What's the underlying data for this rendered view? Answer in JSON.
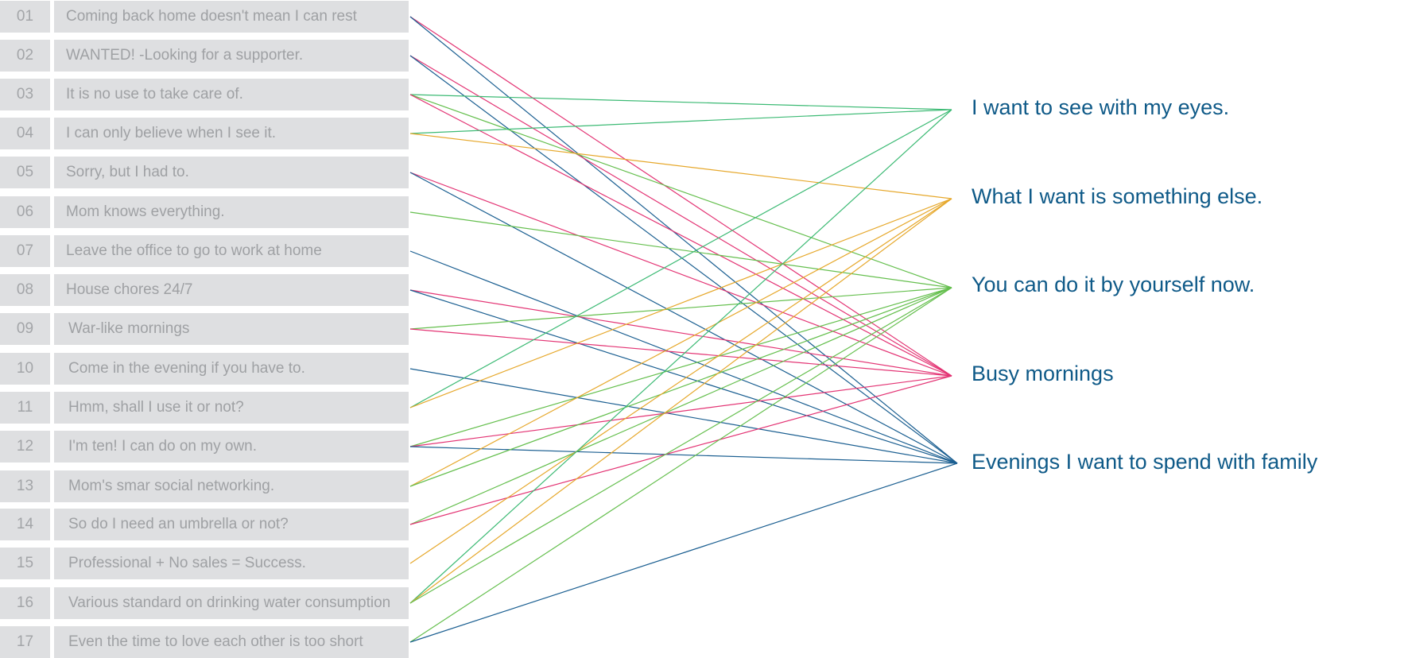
{
  "items": [
    {
      "num": "01",
      "label": "Coming back home doesn't mean I can rest"
    },
    {
      "num": "02",
      "label": "WANTED! -Looking for a supporter."
    },
    {
      "num": "03",
      "label": "It is no use to take care of."
    },
    {
      "num": "04",
      "label": "I can only believe when I see it."
    },
    {
      "num": "05",
      "label": "Sorry, but I had to."
    },
    {
      "num": "06",
      "label": "Mom knows everything."
    },
    {
      "num": "07",
      "label": "Leave the office to go to work at home"
    },
    {
      "num": "08",
      "label": "House chores 24/7"
    },
    {
      "num": "09",
      "label": "War-like mornings"
    },
    {
      "num": "10",
      "label": "Come in the evening if you have to."
    },
    {
      "num": "11",
      "label": "Hmm, shall I use it or not?"
    },
    {
      "num": "12",
      "label": "I'm ten! I can do on my own."
    },
    {
      "num": "13",
      "label": "Mom's smar social networking."
    },
    {
      "num": "14",
      "label": "So do I need an umbrella or not?"
    },
    {
      "num": "15",
      "label": "Professional + No sales = Success."
    },
    {
      "num": "16",
      "label": "Various standard on drinking water consumption"
    },
    {
      "num": "17",
      "label": "Even the time to love each other is too short"
    }
  ],
  "categories": [
    {
      "label": "I want to see with my eyes.",
      "color": "#3cba74"
    },
    {
      "label": "What I want is something else.",
      "color": "#e6a82c"
    },
    {
      "label": "You can do it by yourself now.",
      "color": "#65bf4e"
    },
    {
      "label": "Busy mornings",
      "color": "#e33474"
    },
    {
      "label": "Evenings I want to spend with family",
      "color": "#1b5f91"
    }
  ],
  "connections": [
    {
      "from": "01",
      "to": 3
    },
    {
      "from": "01",
      "to": 4
    },
    {
      "from": "02",
      "to": 3
    },
    {
      "from": "02",
      "to": 4
    },
    {
      "from": "03",
      "to": 0
    },
    {
      "from": "03",
      "to": 2
    },
    {
      "from": "03",
      "to": 3
    },
    {
      "from": "04",
      "to": 0
    },
    {
      "from": "04",
      "to": 1
    },
    {
      "from": "05",
      "to": 3
    },
    {
      "from": "05",
      "to": 4
    },
    {
      "from": "06",
      "to": 2
    },
    {
      "from": "07",
      "to": 4
    },
    {
      "from": "08",
      "to": 3
    },
    {
      "from": "08",
      "to": 4
    },
    {
      "from": "09",
      "to": 2
    },
    {
      "from": "09",
      "to": 3
    },
    {
      "from": "10",
      "to": 4
    },
    {
      "from": "11",
      "to": 0
    },
    {
      "from": "11",
      "to": 1
    },
    {
      "from": "12",
      "to": 2
    },
    {
      "from": "12",
      "to": 3
    },
    {
      "from": "12",
      "to": 4
    },
    {
      "from": "13",
      "to": 1
    },
    {
      "from": "13",
      "to": 2
    },
    {
      "from": "14",
      "to": 2
    },
    {
      "from": "14",
      "to": 3
    },
    {
      "from": "15",
      "to": 1
    },
    {
      "from": "16",
      "to": 0
    },
    {
      "from": "16",
      "to": 1
    },
    {
      "from": "16",
      "to": 2
    },
    {
      "from": "17",
      "to": 2
    },
    {
      "from": "17",
      "to": 4
    }
  ]
}
